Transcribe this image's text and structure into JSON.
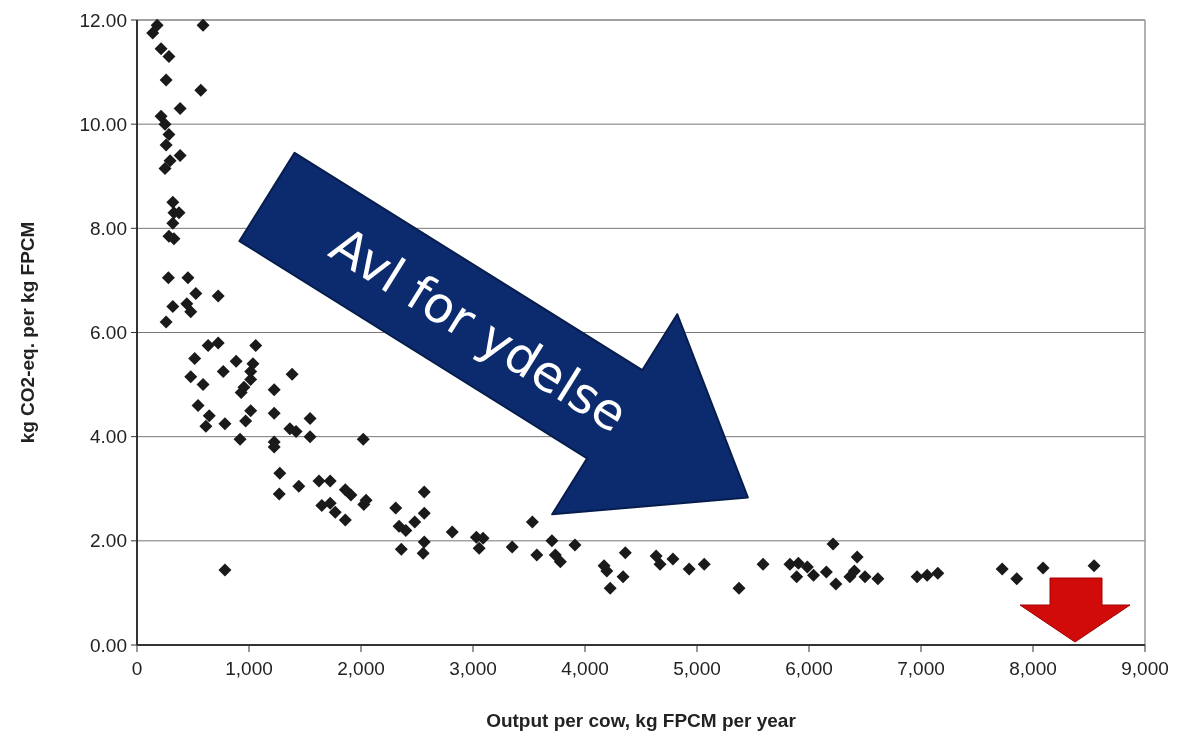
{
  "chart_data": {
    "type": "scatter",
    "xlabel": "Output per cow, kg FPCM per year",
    "ylabel": "kg CO2-eq. per kg FPCM",
    "annotations": [
      "Avl for ydelse"
    ],
    "xlim": [
      0,
      9000
    ],
    "xticks": [
      0,
      {
        "value": 1000,
        "label": "1,000"
      },
      {
        "value": 2000,
        "label": "2,000"
      },
      {
        "value": 3000,
        "label": "3,000"
      },
      {
        "value": 4000,
        "label": "4,000"
      },
      {
        "value": 5000,
        "label": "5,000"
      },
      {
        "value": 6000,
        "label": "6,000"
      },
      {
        "value": 7000,
        "label": "7,000"
      },
      {
        "value": 8000,
        "label": "8,000"
      },
      {
        "value": 9000,
        "label": "9,000"
      }
    ],
    "ylim": [
      0,
      12
    ],
    "yticks": [
      {
        "value": 0,
        "label": "0.00"
      },
      {
        "value": 2,
        "label": "2.00"
      },
      {
        "value": 4,
        "label": "4.00"
      },
      {
        "value": 6,
        "label": "6.00"
      },
      {
        "value": 8,
        "label": "8.00"
      },
      {
        "value": 10,
        "label": "10.00"
      },
      {
        "value": 12,
        "label": "12.00"
      }
    ],
    "grid": "y",
    "marker": "diamond",
    "series": [
      {
        "color": "#1a1a1a",
        "x": [
          140,
          180,
          590,
          215,
          285,
          260,
          570,
          385,
          215,
          250,
          285,
          260,
          385,
          295,
          250,
          320,
          330,
          375,
          320,
          285,
          330,
          280,
          455,
          525,
          725,
          320,
          445,
          480,
          260,
          635,
          725,
          1060,
          515,
          885,
          1035,
          770,
          1015,
          480,
          1015,
          1385,
          590,
          955,
          930,
          1225,
          545,
          645,
          615,
          785,
          1015,
          970,
          1225,
          1365,
          1420,
          1545,
          1545,
          920,
          1225,
          1225,
          2020,
          1275,
          1270,
          1445,
          1625,
          1725,
          1860,
          1910,
          2045,
          2025,
          1650,
          1725,
          1770,
          1860,
          2310,
          2565,
          2565,
          2480,
          2340,
          2400,
          2815,
          2565,
          2360,
          2555,
          785,
          3030,
          3090,
          3055,
          3350,
          3530,
          3570,
          3705,
          3735,
          3780,
          3910,
          4170,
          4195,
          4225,
          4340,
          4360,
          4635,
          4670,
          4785,
          4930,
          5065,
          5375,
          5590,
          5830,
          5890,
          5905,
          5985,
          6040,
          6155,
          6215,
          6240,
          6430,
          6405,
          6365,
          6500,
          6615,
          6965,
          7055,
          7150,
          7725,
          7855,
          8090,
          8545
        ],
        "values": [
          11.75,
          11.9,
          11.9,
          11.45,
          11.3,
          10.85,
          10.65,
          10.3,
          10.15,
          10.0,
          9.8,
          9.6,
          9.4,
          9.3,
          9.15,
          8.5,
          8.3,
          8.3,
          8.1,
          7.85,
          7.8,
          7.05,
          7.05,
          6.75,
          6.7,
          6.5,
          6.55,
          6.4,
          6.2,
          5.75,
          5.8,
          5.75,
          5.5,
          5.45,
          5.4,
          5.25,
          5.25,
          5.15,
          5.1,
          5.2,
          5.0,
          4.95,
          4.85,
          4.9,
          4.6,
          4.4,
          4.2,
          4.25,
          4.5,
          4.3,
          4.45,
          4.15,
          4.1,
          4.35,
          4.0,
          3.95,
          3.9,
          3.8,
          3.95,
          3.3,
          2.9,
          3.05,
          3.15,
          3.15,
          2.98,
          2.88,
          2.78,
          2.7,
          2.68,
          2.72,
          2.55,
          2.4,
          2.63,
          2.94,
          2.53,
          2.36,
          2.28,
          2.2,
          2.17,
          1.98,
          1.84,
          1.76,
          1.44,
          2.07,
          2.05,
          1.86,
          1.88,
          2.36,
          1.73,
          2.0,
          1.73,
          1.6,
          1.92,
          1.52,
          1.42,
          1.09,
          1.31,
          1.77,
          1.71,
          1.55,
          1.65,
          1.46,
          1.55,
          1.09,
          1.55,
          1.55,
          1.31,
          1.57,
          1.5,
          1.34,
          1.4,
          1.94,
          1.17,
          1.69,
          1.42,
          1.31,
          1.31,
          1.27,
          1.31,
          1.34,
          1.38,
          1.46,
          1.27,
          1.48,
          1.52
        ]
      }
    ]
  }
}
